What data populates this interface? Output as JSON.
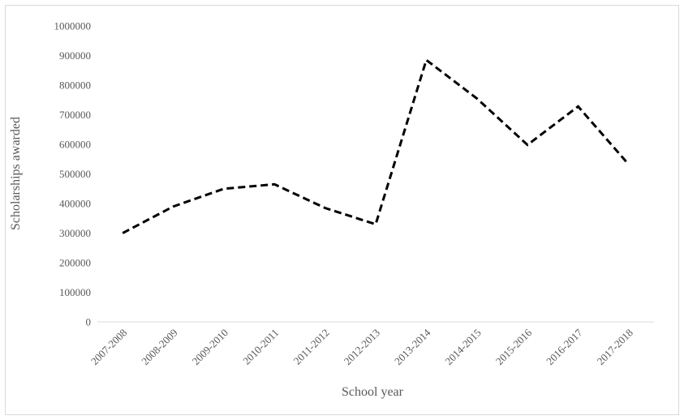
{
  "chart_data": {
    "type": "line",
    "title": "",
    "xlabel": "School year",
    "ylabel": "Scholarships awarded",
    "categories": [
      "2007-2008",
      "2008-2009",
      "2009-2010",
      "2010-2011",
      "2011-2012",
      "2012-2013",
      "2013-2014",
      "2014-2015",
      "2015-2016",
      "2016-2017",
      "2017-2018"
    ],
    "series": [
      {
        "values": [
          300000,
          390000,
          450000,
          465000,
          385000,
          330000,
          885000,
          755000,
          598000,
          728000,
          532000
        ]
      }
    ],
    "ylim": [
      0,
      1000000
    ],
    "yticks": [
      "0",
      "100000",
      "200000",
      "300000",
      "400000",
      "500000",
      "600000",
      "700000",
      "800000",
      "900000",
      "1000000"
    ],
    "yticks_values": [
      0,
      100000,
      200000,
      300000,
      400000,
      500000,
      600000,
      700000,
      800000,
      900000,
      1000000
    ],
    "grid": false,
    "legend": "none",
    "line_color": "#000000",
    "line_style": "dashed"
  }
}
